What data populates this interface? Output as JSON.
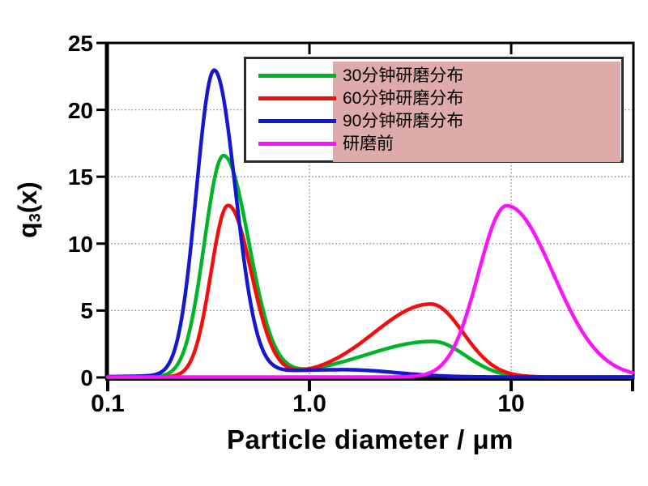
{
  "figure": {
    "background": "#ffffff"
  },
  "chart_data": {
    "type": "line",
    "title": "",
    "x_axis": {
      "label": "Particle diameter / μm",
      "scale": "log",
      "min": 0.1,
      "max": 40,
      "tick_labels": [
        "0.1",
        "1.0",
        "10"
      ],
      "tick_values": [
        0.1,
        1,
        10
      ],
      "bottom_edge_tick_values": [
        0.1,
        1,
        10,
        40
      ],
      "top_tick_values": [
        1,
        10
      ]
    },
    "y_axis": {
      "label": "q3(x)",
      "label_base": "q",
      "label_sub": "3",
      "label_rest": "(x)",
      "min": 0,
      "max": 25,
      "tick_values": [
        0,
        5,
        10,
        15,
        20,
        25
      ]
    },
    "grid": {
      "horizontal_values": [
        5,
        10,
        15,
        20
      ],
      "vertical_values": [
        1,
        10
      ],
      "color": "#8c8c8c",
      "style": "dotted"
    },
    "legend": {
      "position": "top-right",
      "border_color": "#2b2b2b",
      "background": "#ffffff",
      "highlight_color": "#dfaaaa",
      "items": [
        {
          "label": "30分钟研磨分布",
          "color": "#00b428"
        },
        {
          "label": "60分钟研磨分布",
          "color": "#f30d0d"
        },
        {
          "label": "90分钟研磨分布",
          "color": "#1717cf"
        },
        {
          "label": "研磨前",
          "color": "#fa14fa"
        }
      ]
    },
    "series": [
      {
        "name": "30分钟研磨分布",
        "color": "#00b428",
        "peaks": [
          {
            "x": 0.38,
            "y": 16.5
          },
          {
            "x": 4.1,
            "y": 2.65
          }
        ],
        "components": [
          {
            "A": 16.5,
            "x0": 0.375,
            "sl": 0.095,
            "sr": 0.125
          },
          {
            "A": 2.65,
            "x0": 4.1,
            "sl": 0.33,
            "sr": 0.16
          },
          {
            "A": 0.1,
            "x0": 1.0,
            "sl": 0.3,
            "sr": 0.3
          }
        ]
      },
      {
        "name": "60分钟研磨分布",
        "color": "#f30d0d",
        "peaks": [
          {
            "x": 0.4,
            "y": 12.8
          },
          {
            "x": 4.0,
            "y": 5.45
          }
        ],
        "components": [
          {
            "A": 12.8,
            "x0": 0.395,
            "sl": 0.085,
            "sr": 0.115
          },
          {
            "A": 5.45,
            "x0": 4.0,
            "sl": 0.28,
            "sr": 0.16
          },
          {
            "A": 0.05,
            "x0": 1.0,
            "sl": 0.3,
            "sr": 0.3
          }
        ]
      },
      {
        "name": "90分钟研磨分布",
        "color": "#1717cf",
        "peaks": [
          {
            "x": 0.34,
            "y": 22.7
          },
          {
            "x": 1.5,
            "y": 0.55
          }
        ],
        "components": [
          {
            "A": 22.7,
            "x0": 0.337,
            "sl": 0.088,
            "sr": 0.105
          },
          {
            "A": 0.55,
            "x0": 1.5,
            "sl": 0.5,
            "sr": 0.25
          }
        ]
      },
      {
        "name": "研磨前",
        "color": "#fa14fa",
        "peaks": [
          {
            "x": 9.5,
            "y": 12.8
          }
        ],
        "components": [
          {
            "A": 12.8,
            "x0": 9.5,
            "sl": 0.14,
            "sr": 0.23
          }
        ]
      }
    ]
  }
}
